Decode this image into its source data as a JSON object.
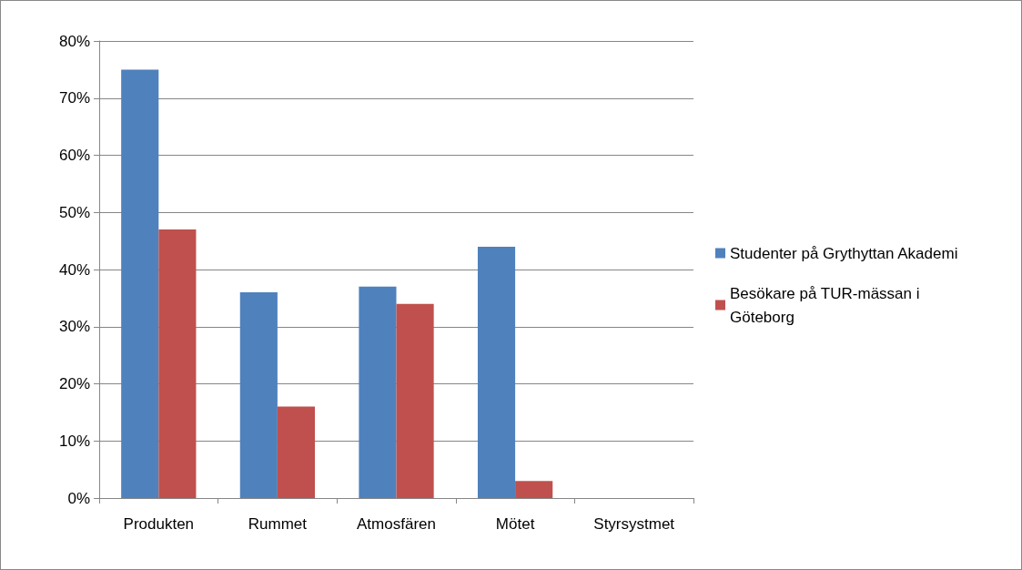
{
  "chart_data": {
    "type": "bar",
    "categories": [
      "Produkten",
      "Rummet",
      "Atmosfären",
      "Mötet",
      "Styrsystmet"
    ],
    "series": [
      {
        "name": "Studenter på Grythyttan Akademi",
        "color": "#4f81bd",
        "values": [
          75,
          36,
          37,
          44,
          0
        ]
      },
      {
        "name": "Besökare på TUR-mässan i Göteborg",
        "color": "#c0504d",
        "values": [
          47,
          16,
          34,
          3,
          0
        ]
      }
    ],
    "ylim": [
      0,
      80
    ],
    "yticks": [
      {
        "value": 0,
        "label": "0%"
      },
      {
        "value": 10,
        "label": "10%"
      },
      {
        "value": 20,
        "label": "20%"
      },
      {
        "value": 30,
        "label": "30%"
      },
      {
        "value": 40,
        "label": "40%"
      },
      {
        "value": 50,
        "label": "50%"
      },
      {
        "value": 60,
        "label": "60%"
      },
      {
        "value": 70,
        "label": "70%"
      },
      {
        "value": 80,
        "label": "80%"
      }
    ],
    "grid": "y",
    "legend": "right"
  }
}
